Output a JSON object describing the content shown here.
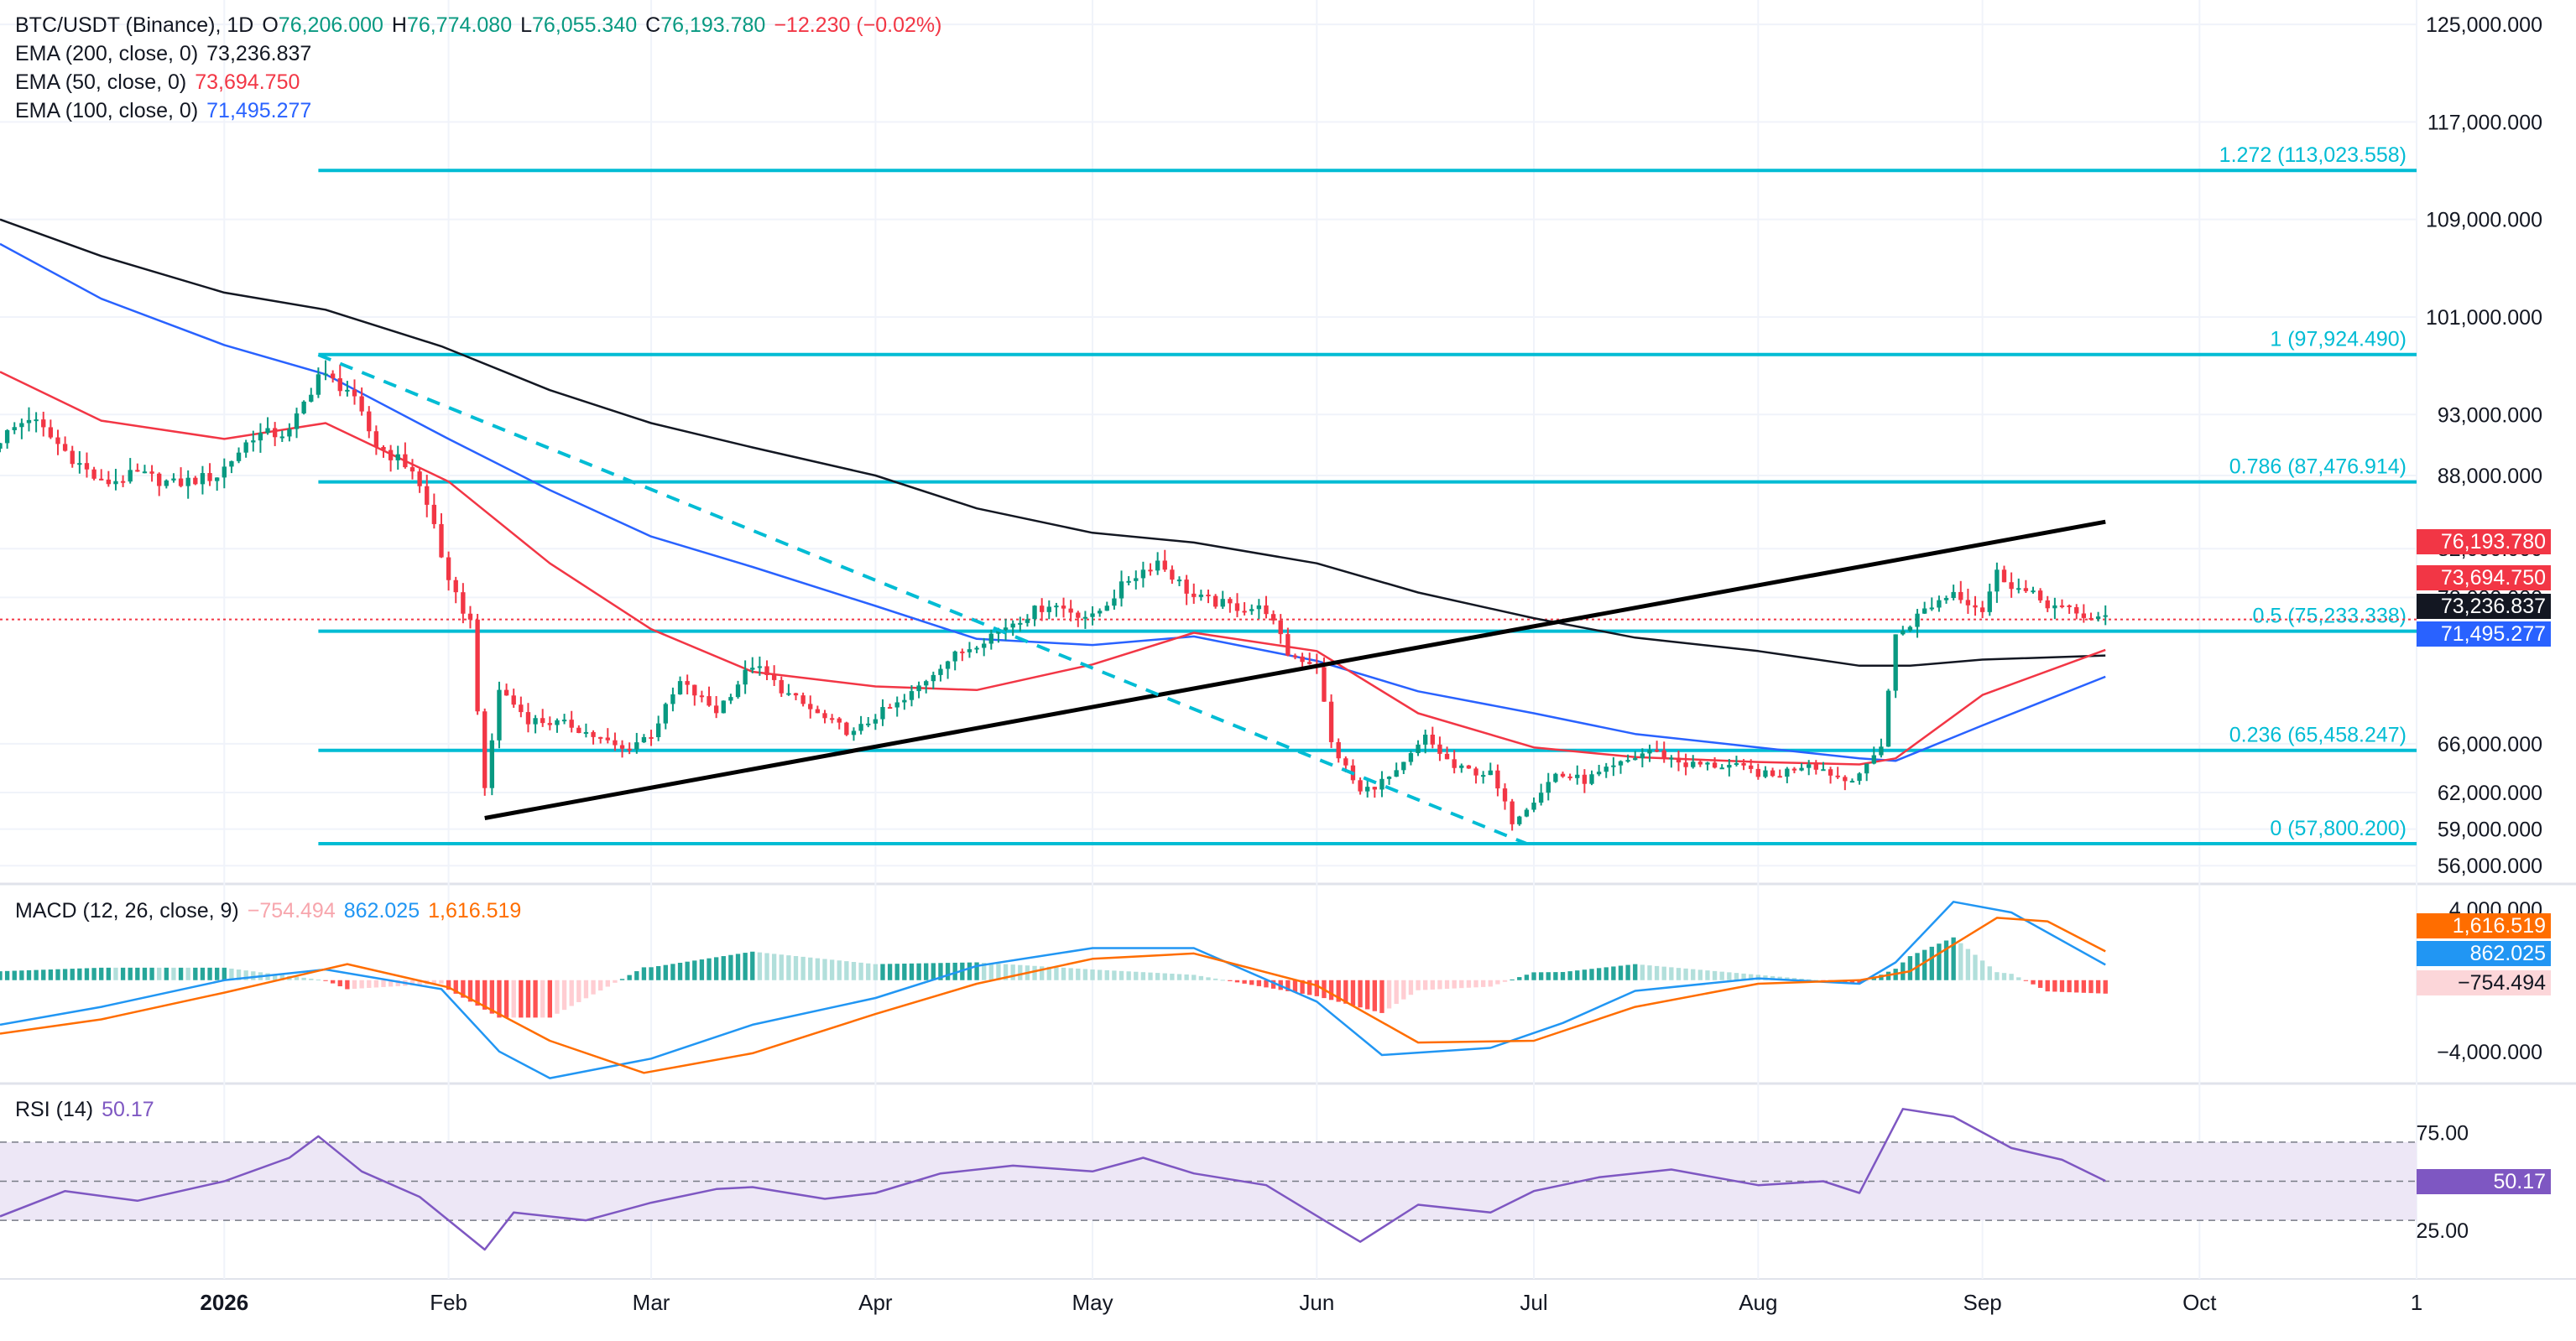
{
  "legend": {
    "symbol": "BTC/USDT (Binance), 1D",
    "o_label": "O",
    "o": "76,206.000",
    "h_label": "H",
    "h": "76,774.080",
    "l_label": "L",
    "l": "76,055.340",
    "c_label": "C",
    "c": "76,193.780",
    "change": "−12.230 (−0.02%)",
    "ema200_label": "EMA (200, close, 0)",
    "ema200": "73,236.837",
    "ema50_label": "EMA (50, close, 0)",
    "ema50": "73,694.750",
    "ema100_label": "EMA (100, close, 0)",
    "ema100": "71,495.277",
    "macd_label": "MACD (12, 26, close, 9)",
    "macd_hist": "−754.494",
    "macd_line": "862.025",
    "macd_signal": "1,616.519",
    "rsi_label": "RSI (14)",
    "rsi": "50.17"
  },
  "colors": {
    "up": "#089981",
    "down": "#f23645",
    "fib": "#00bcd4",
    "ema200": "#131722",
    "ema50": "#f23645",
    "ema100": "#2962ff",
    "macd": "#2196f3",
    "signal": "#ff6d00",
    "rsi": "#7e57c2",
    "rsi_band": "#ede7f6"
  },
  "price_tags": {
    "close": "76,193.780",
    "ema50": "73,694.750",
    "ema200": "73,236.837",
    "ema100": "71,495.277",
    "macd_signal": "1,616.519",
    "macd_line": "862.025",
    "macd_hist": "−754.494",
    "rsi": "50.17"
  },
  "chart_data": {
    "type": "candlestick",
    "x_range": [
      "2025-12-01",
      "2026-10-31"
    ],
    "price_range": [
      54500,
      127000
    ],
    "price_axis_ticks": [
      {
        "v": 125000,
        "label": "125,000.000"
      },
      {
        "v": 117000,
        "label": "117,000.000"
      },
      {
        "v": 109000,
        "label": "109,000.000"
      },
      {
        "v": 101000,
        "label": "101,000.000"
      },
      {
        "v": 93000,
        "label": "93,000.000"
      },
      {
        "v": 88000,
        "label": "88,000.000"
      },
      {
        "v": 82000,
        "label": "82,000.000"
      },
      {
        "v": 78000,
        "label": "78,000.000"
      },
      {
        "v": 66000,
        "label": "66,000.000"
      },
      {
        "v": 62000,
        "label": "62,000.000"
      },
      {
        "v": 59000,
        "label": "59,000.000"
      },
      {
        "v": 56000,
        "label": "56,000.000"
      }
    ],
    "time_axis_ticks": [
      {
        "date": "2026-01-01",
        "label": "2026",
        "bold": true
      },
      {
        "date": "2026-02-01",
        "label": "Feb"
      },
      {
        "date": "2026-03-01",
        "label": "Mar"
      },
      {
        "date": "2026-04-01",
        "label": "Apr"
      },
      {
        "date": "2026-05-01",
        "label": "May"
      },
      {
        "date": "2026-06-01",
        "label": "Jun"
      },
      {
        "date": "2026-07-01",
        "label": "Jul"
      },
      {
        "date": "2026-08-01",
        "label": "Aug"
      },
      {
        "date": "2026-09-01",
        "label": "Sep"
      },
      {
        "date": "2026-10-01",
        "label": "Oct"
      },
      {
        "date": "2026-10-31",
        "label": "1"
      }
    ],
    "fib_levels": [
      {
        "price": 113023.558,
        "label": "1.272 (113,023.558)"
      },
      {
        "price": 97924.49,
        "label": "1 (97,924.490)"
      },
      {
        "price": 87476.914,
        "label": "0.786 (87,476.914)"
      },
      {
        "price": 75233.338,
        "label": "0.5 (75,233.338)"
      },
      {
        "price": 65458.247,
        "label": "0.236 (65,458.247)"
      },
      {
        "price": 57800.2,
        "label": "0 (57,800.200)"
      }
    ],
    "fib_start": "2026-01-14",
    "trendlines": [
      {
        "style": "solid",
        "from": {
          "date": "2026-02-06",
          "price": 59900
        },
        "to": {
          "date": "2026-09-18",
          "price": 84200
        }
      },
      {
        "style": "dashed",
        "from": {
          "date": "2026-01-14",
          "price": 97900
        },
        "to": {
          "date": "2026-06-30",
          "price": 57800
        }
      }
    ],
    "last_close": 76193.78,
    "ema200_path": [
      [
        "2025-12-01",
        109000
      ],
      [
        "2025-12-15",
        106000
      ],
      [
        "2026-01-01",
        103000
      ],
      [
        "2026-01-15",
        101600
      ],
      [
        "2026-01-31",
        98600
      ],
      [
        "2026-02-15",
        95000
      ],
      [
        "2026-03-01",
        92300
      ],
      [
        "2026-03-15",
        90300
      ],
      [
        "2026-04-01",
        88000
      ],
      [
        "2026-04-15",
        85300
      ],
      [
        "2026-05-01",
        83300
      ],
      [
        "2026-05-15",
        82500
      ],
      [
        "2026-06-01",
        80800
      ],
      [
        "2026-06-15",
        78400
      ],
      [
        "2026-07-01",
        76300
      ],
      [
        "2026-07-15",
        74700
      ],
      [
        "2026-08-01",
        73600
      ],
      [
        "2026-08-15",
        72400
      ],
      [
        "2026-08-22",
        72400
      ],
      [
        "2026-09-01",
        72900
      ],
      [
        "2026-09-18",
        73236.837
      ]
    ],
    "ema100_path": [
      [
        "2025-12-01",
        107000
      ],
      [
        "2025-12-15",
        102500
      ],
      [
        "2026-01-01",
        98700
      ],
      [
        "2026-01-15",
        96300
      ],
      [
        "2026-02-01",
        91000
      ],
      [
        "2026-02-15",
        86800
      ],
      [
        "2026-03-01",
        83000
      ],
      [
        "2026-03-15",
        80500
      ],
      [
        "2026-04-01",
        77300
      ],
      [
        "2026-04-15",
        74600
      ],
      [
        "2026-05-01",
        74100
      ],
      [
        "2026-05-15",
        74800
      ],
      [
        "2026-06-01",
        72800
      ],
      [
        "2026-06-15",
        70300
      ],
      [
        "2026-07-01",
        68500
      ],
      [
        "2026-07-15",
        66800
      ],
      [
        "2026-08-01",
        65700
      ],
      [
        "2026-08-15",
        64800
      ],
      [
        "2026-08-20",
        64600
      ],
      [
        "2026-09-01",
        67500
      ],
      [
        "2026-09-18",
        71495.277
      ]
    ],
    "ema50_path": [
      [
        "2025-12-01",
        96500
      ],
      [
        "2025-12-15",
        92500
      ],
      [
        "2026-01-01",
        91000
      ],
      [
        "2026-01-15",
        92300
      ],
      [
        "2026-02-01",
        87500
      ],
      [
        "2026-02-15",
        80800
      ],
      [
        "2026-03-01",
        75400
      ],
      [
        "2026-03-15",
        71900
      ],
      [
        "2026-04-01",
        70700
      ],
      [
        "2026-04-15",
        70400
      ],
      [
        "2026-05-01",
        72500
      ],
      [
        "2026-05-15",
        75100
      ],
      [
        "2026-06-01",
        73600
      ],
      [
        "2026-06-15",
        68500
      ],
      [
        "2026-07-01",
        65700
      ],
      [
        "2026-07-15",
        64900
      ],
      [
        "2026-08-01",
        64500
      ],
      [
        "2026-08-15",
        64300
      ],
      [
        "2026-08-20",
        64800
      ],
      [
        "2026-09-01",
        70000
      ],
      [
        "2026-09-18",
        73694.75
      ]
    ],
    "candle_path": [
      [
        "2025-12-01",
        91000
      ],
      [
        "2025-12-05",
        92800
      ],
      [
        "2025-12-10",
        90000
      ],
      [
        "2025-12-15",
        87300
      ],
      [
        "2025-12-20",
        88100
      ],
      [
        "2025-12-25",
        87300
      ],
      [
        "2025-12-31",
        88000
      ],
      [
        "2026-01-05",
        91300
      ],
      [
        "2026-01-10",
        91500
      ],
      [
        "2026-01-14",
        96300
      ],
      [
        "2026-01-18",
        95100
      ],
      [
        "2026-01-22",
        90500
      ],
      [
        "2026-01-27",
        88500
      ],
      [
        "2026-01-30",
        84000
      ],
      [
        "2026-02-01",
        79000
      ],
      [
        "2026-02-04",
        76000
      ],
      [
        "2026-02-06",
        62000
      ],
      [
        "2026-02-08",
        70500
      ],
      [
        "2026-02-12",
        68000
      ],
      [
        "2026-02-18",
        67500
      ],
      [
        "2026-02-25",
        65500
      ],
      [
        "2026-03-01",
        66800
      ],
      [
        "2026-03-05",
        71000
      ],
      [
        "2026-03-10",
        68700
      ],
      [
        "2026-03-15",
        72500
      ],
      [
        "2026-03-20",
        70000
      ],
      [
        "2026-03-25",
        68000
      ],
      [
        "2026-03-29",
        66800
      ],
      [
        "2026-04-01",
        68300
      ],
      [
        "2026-04-05",
        69500
      ],
      [
        "2026-04-10",
        72500
      ],
      [
        "2026-04-15",
        74300
      ],
      [
        "2026-04-20",
        76000
      ],
      [
        "2026-04-25",
        77500
      ],
      [
        "2026-05-01",
        76300
      ],
      [
        "2026-05-06",
        79500
      ],
      [
        "2026-05-10",
        81000
      ],
      [
        "2026-05-15",
        78000
      ],
      [
        "2026-05-20",
        77300
      ],
      [
        "2026-05-25",
        77000
      ],
      [
        "2026-05-28",
        73400
      ],
      [
        "2026-06-01",
        72500
      ],
      [
        "2026-06-03",
        66000
      ],
      [
        "2026-06-07",
        62000
      ],
      [
        "2026-06-12",
        63500
      ],
      [
        "2026-06-16",
        66500
      ],
      [
        "2026-06-20",
        64000
      ],
      [
        "2026-06-25",
        63500
      ],
      [
        "2026-06-28",
        59700
      ],
      [
        "2026-07-01",
        61500
      ],
      [
        "2026-07-04",
        63500
      ],
      [
        "2026-07-08",
        63000
      ],
      [
        "2026-07-12",
        64000
      ],
      [
        "2026-07-17",
        65500
      ],
      [
        "2026-07-22",
        64300
      ],
      [
        "2026-07-28",
        64200
      ],
      [
        "2026-08-03",
        63300
      ],
      [
        "2026-08-08",
        64500
      ],
      [
        "2026-08-13",
        63000
      ],
      [
        "2026-08-16",
        64000
      ],
      [
        "2026-08-18",
        66000
      ],
      [
        "2026-08-20",
        74800
      ],
      [
        "2026-08-24",
        77000
      ],
      [
        "2026-08-28",
        78500
      ],
      [
        "2026-09-01",
        77000
      ],
      [
        "2026-09-03",
        80000
      ],
      [
        "2026-09-06",
        78700
      ],
      [
        "2026-09-10",
        77500
      ],
      [
        "2026-09-14",
        76600
      ],
      [
        "2026-09-18",
        76193.78
      ]
    ],
    "macd_range": [
      -5800,
      5400
    ],
    "macd_axis_ticks": [
      {
        "v": 4000,
        "label": "4,000.000"
      },
      {
        "v": -4000,
        "label": "−4,000.000"
      }
    ],
    "macd_path": [
      [
        "2025-12-01",
        -2500
      ],
      [
        "2025-12-15",
        -1500
      ],
      [
        "2026-01-01",
        0
      ],
      [
        "2026-01-15",
        600
      ],
      [
        "2026-01-31",
        -500
      ],
      [
        "2026-02-08",
        -4000
      ],
      [
        "2026-02-15",
        -5500
      ],
      [
        "2026-03-01",
        -4400
      ],
      [
        "2026-03-15",
        -2500
      ],
      [
        "2026-04-01",
        -1000
      ],
      [
        "2026-04-15",
        800
      ],
      [
        "2026-05-01",
        1800
      ],
      [
        "2026-05-15",
        1800
      ],
      [
        "2026-06-01",
        -1200
      ],
      [
        "2026-06-10",
        -4200
      ],
      [
        "2026-06-25",
        -3800
      ],
      [
        "2026-07-05",
        -2400
      ],
      [
        "2026-07-15",
        -600
      ],
      [
        "2026-08-01",
        100
      ],
      [
        "2026-08-15",
        -200
      ],
      [
        "2026-08-20",
        1000
      ],
      [
        "2026-08-28",
        4400
      ],
      [
        "2026-09-05",
        3800
      ],
      [
        "2026-09-18",
        862.025
      ]
    ],
    "signal_path": [
      [
        "2025-12-01",
        -3000
      ],
      [
        "2025-12-15",
        -2200
      ],
      [
        "2026-01-01",
        -700
      ],
      [
        "2026-01-18",
        900
      ],
      [
        "2026-02-01",
        -400
      ],
      [
        "2026-02-15",
        -3400
      ],
      [
        "2026-02-28",
        -5200
      ],
      [
        "2026-03-15",
        -4100
      ],
      [
        "2026-04-01",
        -1900
      ],
      [
        "2026-04-15",
        -200
      ],
      [
        "2026-05-01",
        1200
      ],
      [
        "2026-05-15",
        1500
      ],
      [
        "2026-06-01",
        -300
      ],
      [
        "2026-06-15",
        -3500
      ],
      [
        "2026-07-01",
        -3400
      ],
      [
        "2026-07-15",
        -1500
      ],
      [
        "2026-08-01",
        -200
      ],
      [
        "2026-08-15",
        0
      ],
      [
        "2026-08-22",
        500
      ],
      [
        "2026-09-03",
        3500
      ],
      [
        "2026-09-10",
        3300
      ],
      [
        "2026-09-18",
        1616.519
      ]
    ],
    "rsi_range": [
      0,
      100
    ],
    "rsi_band": [
      30,
      70
    ],
    "rsi_axis_ticks": [
      {
        "v": 75,
        "label": "75.00"
      },
      {
        "v": 25,
        "label": "25.00"
      }
    ],
    "rsi_path": [
      [
        "2025-12-01",
        32
      ],
      [
        "2025-12-10",
        45
      ],
      [
        "2025-12-20",
        40
      ],
      [
        "2026-01-01",
        50
      ],
      [
        "2026-01-10",
        62
      ],
      [
        "2026-01-14",
        73
      ],
      [
        "2026-01-20",
        55
      ],
      [
        "2026-01-28",
        42
      ],
      [
        "2026-02-06",
        15
      ],
      [
        "2026-02-10",
        34
      ],
      [
        "2026-02-20",
        30
      ],
      [
        "2026-03-01",
        39
      ],
      [
        "2026-03-10",
        46
      ],
      [
        "2026-03-15",
        47
      ],
      [
        "2026-03-25",
        41
      ],
      [
        "2026-04-01",
        44
      ],
      [
        "2026-04-10",
        54
      ],
      [
        "2026-04-20",
        58
      ],
      [
        "2026-05-01",
        55
      ],
      [
        "2026-05-08",
        62
      ],
      [
        "2026-05-15",
        54
      ],
      [
        "2026-05-25",
        48
      ],
      [
        "2026-06-02",
        30
      ],
      [
        "2026-06-07",
        19
      ],
      [
        "2026-06-15",
        38
      ],
      [
        "2026-06-25",
        34
      ],
      [
        "2026-07-01",
        45
      ],
      [
        "2026-07-10",
        52
      ],
      [
        "2026-07-20",
        56
      ],
      [
        "2026-08-01",
        48
      ],
      [
        "2026-08-10",
        50
      ],
      [
        "2026-08-15",
        44
      ],
      [
        "2026-08-21",
        87
      ],
      [
        "2026-08-28",
        83
      ],
      [
        "2026-09-05",
        67
      ],
      [
        "2026-09-12",
        61
      ],
      [
        "2026-09-18",
        50.17
      ]
    ]
  }
}
